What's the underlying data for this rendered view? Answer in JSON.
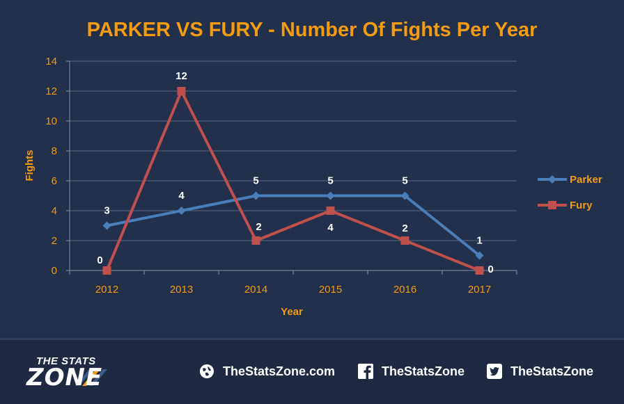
{
  "chart_data": {
    "type": "line",
    "title": "PARKER VS FURY - Number Of Fights Per Year",
    "xlabel": "Year",
    "ylabel": "Fights",
    "categories": [
      "2012",
      "2013",
      "2014",
      "2015",
      "2016",
      "2017"
    ],
    "ylim": [
      0,
      14
    ],
    "yticks": [
      0,
      2,
      4,
      6,
      8,
      10,
      12,
      14
    ],
    "grid": true,
    "legend_position": "right",
    "series": [
      {
        "name": "Parker",
        "values": [
          3,
          4,
          5,
          5,
          5,
          1
        ],
        "color": "#4a7ebb",
        "marker": "diamond"
      },
      {
        "name": "Fury",
        "values": [
          0,
          12,
          2,
          4,
          2,
          0
        ],
        "color": "#c0504d",
        "marker": "square"
      }
    ]
  },
  "colors": {
    "background": "#22304b",
    "title": "#f39c12",
    "axis_text": "#f39c12",
    "data_label": "#ffffff",
    "gridline": "#5d6a80"
  },
  "footer": {
    "logo_top": "THE STATS",
    "logo_bottom": "ZONE",
    "website": {
      "icon": "globe-icon",
      "label": "TheStatsZone.com"
    },
    "facebook": {
      "icon": "facebook-icon",
      "label": "TheStatsZone"
    },
    "twitter": {
      "icon": "twitter-icon",
      "label": "TheStatsZone"
    }
  }
}
